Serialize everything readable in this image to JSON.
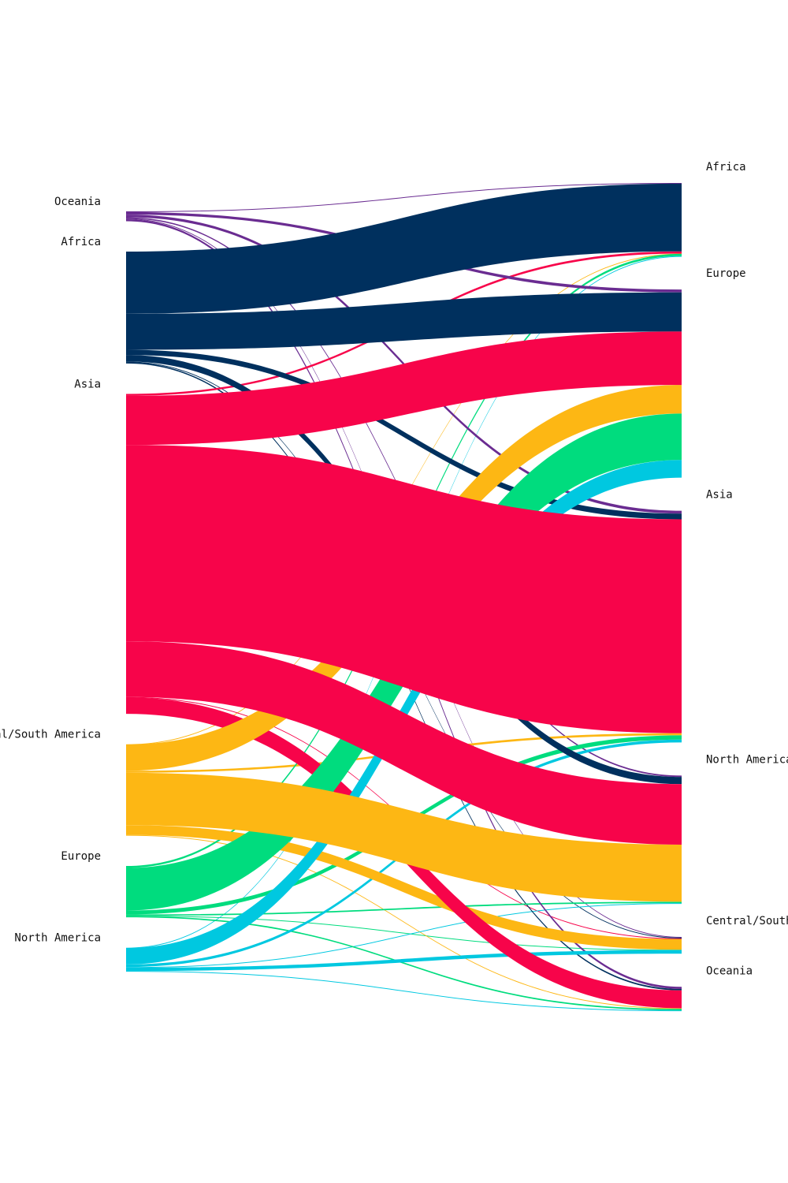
{
  "chart_data": {
    "type": "sankey",
    "title": "",
    "units": "",
    "left_nodes": [
      {
        "id": "oceania",
        "label": "Oceania"
      },
      {
        "id": "africa",
        "label": "Africa"
      },
      {
        "id": "asia",
        "label": "Asia"
      },
      {
        "id": "csa",
        "label": "Central/South America"
      },
      {
        "id": "europe",
        "label": "Europe"
      },
      {
        "id": "namerica",
        "label": "North America"
      }
    ],
    "right_nodes": [
      {
        "id": "africa",
        "label": "Africa"
      },
      {
        "id": "europe",
        "label": "Europe"
      },
      {
        "id": "asia",
        "label": "Asia"
      },
      {
        "id": "namerica",
        "label": "North America"
      },
      {
        "id": "csa",
        "label": "Central/South America"
      },
      {
        "id": "oceania",
        "label": "Oceania"
      }
    ],
    "colors": {
      "oceania": "#6a2c91",
      "africa": "#00305e",
      "asia": "#f7044a",
      "csa": "#fdb714",
      "europe": "#00dc7e",
      "namerica": "#00c8e0"
    },
    "flows": [
      {
        "source": "oceania",
        "target": "africa",
        "value": 0.1
      },
      {
        "source": "oceania",
        "target": "europe",
        "value": 0.4
      },
      {
        "source": "oceania",
        "target": "asia",
        "value": 0.4
      },
      {
        "source": "oceania",
        "target": "namerica",
        "value": 0.2
      },
      {
        "source": "oceania",
        "target": "csa",
        "value": 0.1
      },
      {
        "source": "oceania",
        "target": "oceania",
        "value": 0.3
      },
      {
        "source": "africa",
        "target": "africa",
        "value": 9.5
      },
      {
        "source": "africa",
        "target": "europe",
        "value": 5.5
      },
      {
        "source": "africa",
        "target": "asia",
        "value": 0.8
      },
      {
        "source": "africa",
        "target": "namerica",
        "value": 1.0
      },
      {
        "source": "africa",
        "target": "csa",
        "value": 0.1
      },
      {
        "source": "africa",
        "target": "oceania",
        "value": 0.2
      },
      {
        "source": "asia",
        "target": "africa",
        "value": 0.3
      },
      {
        "source": "asia",
        "target": "europe",
        "value": 7.5
      },
      {
        "source": "asia",
        "target": "asia",
        "value": 30.0
      },
      {
        "source": "asia",
        "target": "namerica",
        "value": 8.5
      },
      {
        "source": "asia",
        "target": "csa",
        "value": 0.1
      },
      {
        "source": "asia",
        "target": "oceania",
        "value": 2.5
      },
      {
        "source": "csa",
        "target": "africa",
        "value": 0.05
      },
      {
        "source": "csa",
        "target": "europe",
        "value": 4.0
      },
      {
        "source": "csa",
        "target": "asia",
        "value": 0.3
      },
      {
        "source": "csa",
        "target": "namerica",
        "value": 8.0
      },
      {
        "source": "csa",
        "target": "csa",
        "value": 1.5
      },
      {
        "source": "csa",
        "target": "oceania",
        "value": 0.1
      },
      {
        "source": "europe",
        "target": "africa",
        "value": 0.3
      },
      {
        "source": "europe",
        "target": "europe",
        "value": 6.5
      },
      {
        "source": "europe",
        "target": "asia",
        "value": 0.6
      },
      {
        "source": "europe",
        "target": "namerica",
        "value": 0.2
      },
      {
        "source": "europe",
        "target": "csa",
        "value": 0.05
      },
      {
        "source": "europe",
        "target": "oceania",
        "value": 0.2
      },
      {
        "source": "namerica",
        "target": "africa",
        "value": 0.05
      },
      {
        "source": "namerica",
        "target": "europe",
        "value": 2.5
      },
      {
        "source": "namerica",
        "target": "asia",
        "value": 0.4
      },
      {
        "source": "namerica",
        "target": "namerica",
        "value": 0.1
      },
      {
        "source": "namerica",
        "target": "csa",
        "value": 0.5
      },
      {
        "source": "namerica",
        "target": "oceania",
        "value": 0.1
      }
    ]
  }
}
